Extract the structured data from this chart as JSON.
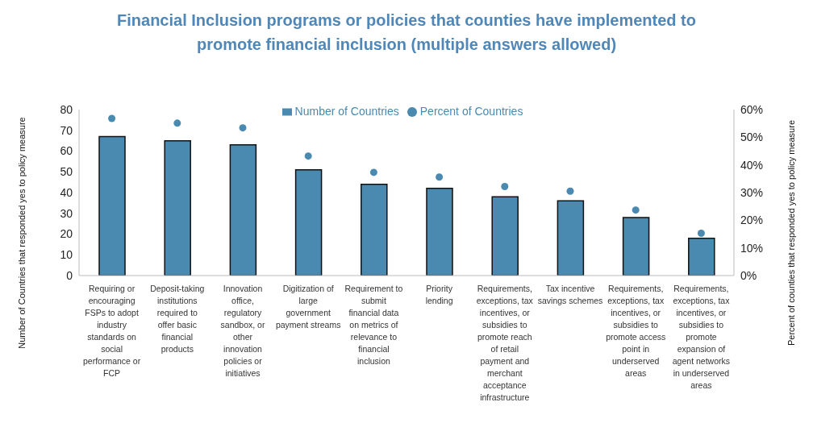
{
  "chart_data": {
    "type": "bar",
    "title": "Financial Inclusion programs or policies that counties have implemented to promote financial inclusion (multiple answers allowed)",
    "ylabel": "Number of Countries  that responded yes to policy measure",
    "y2label": "Percent of counties that responded yes to policy measure",
    "categories": [
      "Requiring or encouraging FSPs to adopt industry standards on social performance or FCP",
      "Deposit-taking institutions required to offer basic financial products",
      "Innovation office, regulatory sandbox, or other innovation policies or initiatives",
      "Digitization of large government payment streams",
      "Requirement to submit financial data on metrics of relevance to financial inclusion",
      "Priority lending",
      "Requirements, exceptions, tax incentives, or subsidies to promote reach of retail payment and merchant acceptance infrastructure",
      "Tax incentive savings schemes",
      "Requirements, exceptions, tax incentives, or subsidies to promote access point in underserved areas",
      "Requirements, exceptions, tax incentives, or subsidies to promote expansion of agent networks in underserved areas"
    ],
    "series": [
      {
        "name": "Number of Countries",
        "color": "#4a8ab0",
        "values": [
          67,
          65,
          63,
          51,
          44,
          42,
          38,
          36,
          28,
          18
        ]
      },
      {
        "name": "Percent of Countries",
        "type": "scatter",
        "axis": "y2",
        "marker": "circle",
        "color": "#4a8ab0",
        "values": [
          56.8,
          55.1,
          53.4,
          43.2,
          37.3,
          35.6,
          32.2,
          30.5,
          23.7,
          15.3
        ]
      }
    ],
    "ylim": [
      0,
      80
    ],
    "yticks": [
      0,
      10,
      20,
      30,
      40,
      50,
      60,
      70,
      80
    ],
    "y2lim": [
      0,
      60
    ],
    "y2ticks": [
      {
        "value": 0,
        "label": "0%"
      },
      {
        "value": 10,
        "label": "10%"
      },
      {
        "value": 20,
        "label": "20%"
      },
      {
        "value": 30,
        "label": "30%"
      },
      {
        "value": 40,
        "label": "40%"
      },
      {
        "value": 50,
        "label": "50%"
      },
      {
        "value": 60,
        "label": "60%"
      }
    ],
    "grid": false,
    "legend": "top"
  }
}
